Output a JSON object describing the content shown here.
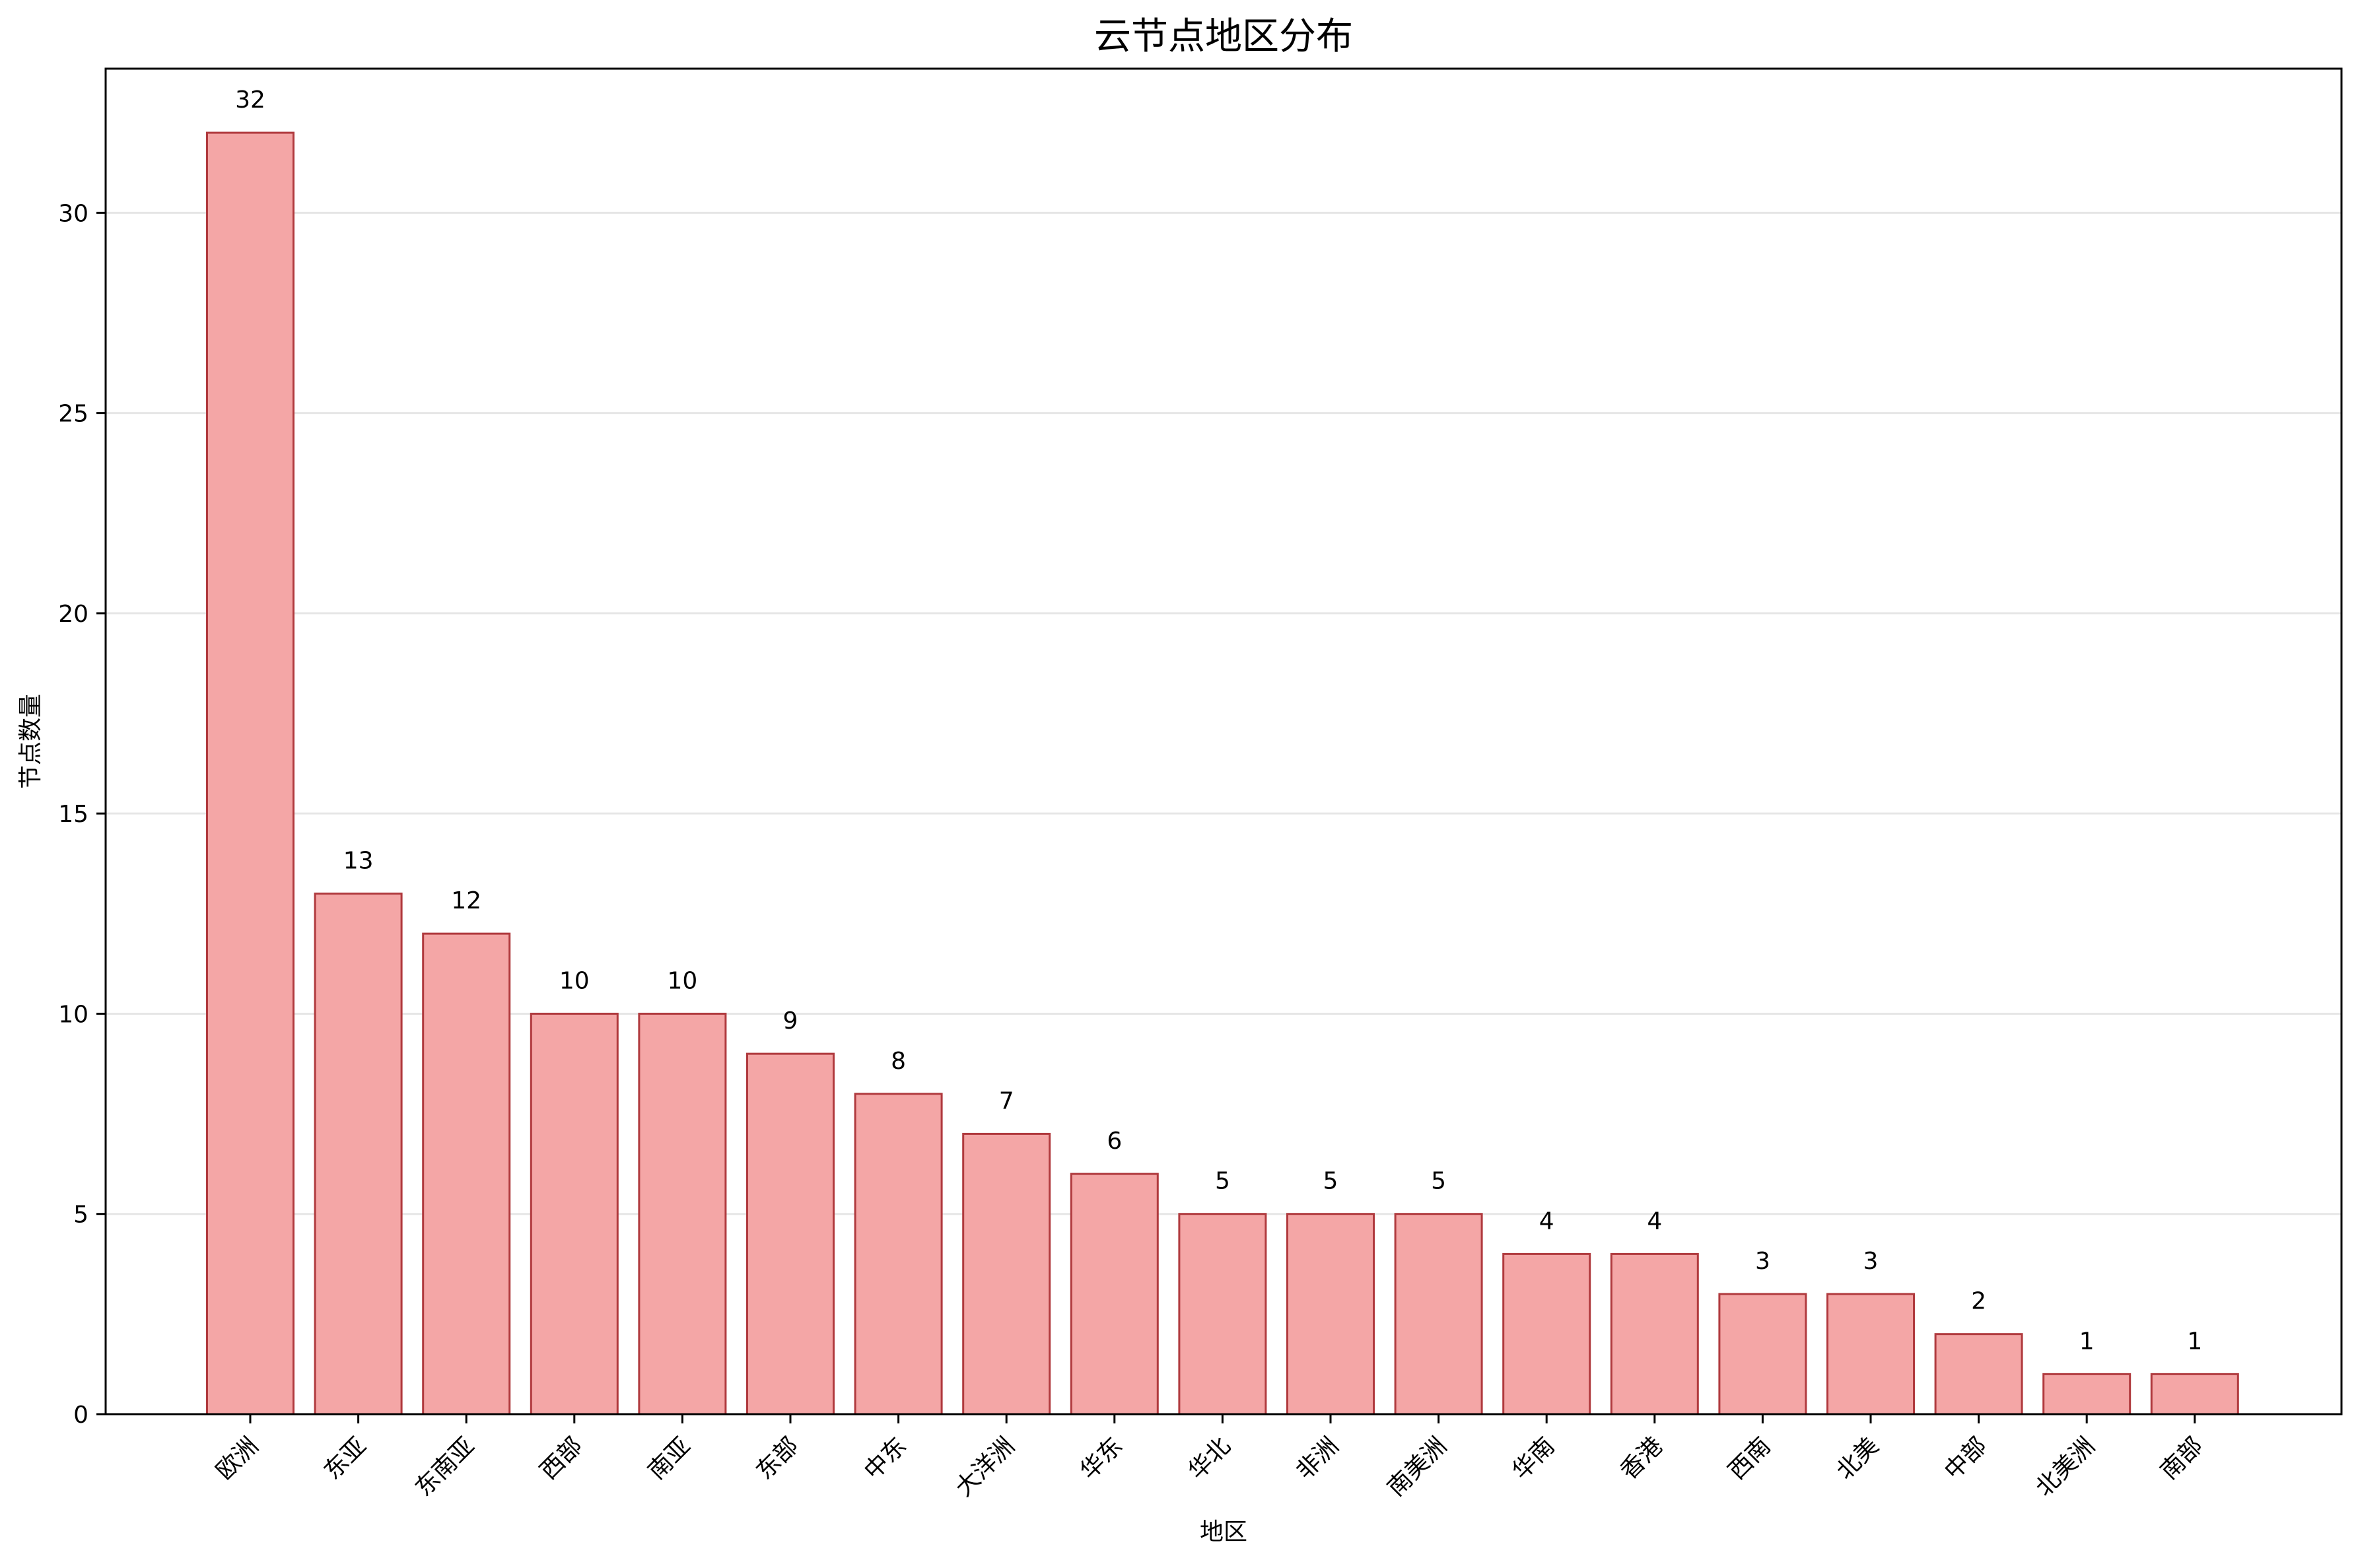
{
  "chart_data": {
    "type": "bar",
    "title": "云节点地区分布",
    "xlabel": "地区",
    "ylabel": "节点数量",
    "categories": [
      "欧洲",
      "东亚",
      "东南亚",
      "西部",
      "南亚",
      "东部",
      "中东",
      "大洋洲",
      "华东",
      "华北",
      "非洲",
      "南美洲",
      "华南",
      "香港",
      "西南",
      "北美",
      "中部",
      "北美洲",
      "南部"
    ],
    "values": [
      32,
      13,
      12,
      10,
      10,
      9,
      8,
      7,
      6,
      5,
      5,
      5,
      4,
      4,
      3,
      3,
      2,
      1,
      1
    ],
    "ylim": [
      0,
      33.6
    ],
    "yticks": [
      0,
      5,
      10,
      15,
      20,
      25,
      30
    ],
    "grid": "y",
    "legend": "none",
    "colors": {
      "bar_fill": "#f4a6a6",
      "bar_edge": "#b03a3e",
      "grid": "#e6e6e6"
    }
  }
}
